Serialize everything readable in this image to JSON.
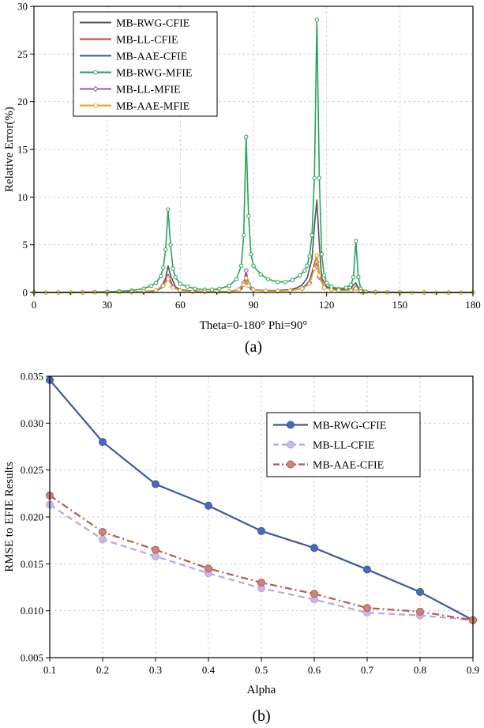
{
  "chart_data": [
    {
      "type": "line",
      "caption": "(a)",
      "xlabel": "Theta=0-180° Phi=90°",
      "ylabel": "Relative Error(%)",
      "xlim": [
        0,
        180
      ],
      "ylim": [
        0,
        30
      ],
      "xticks": [
        0,
        30,
        60,
        90,
        120,
        150,
        180
      ],
      "yticks": [
        0,
        5,
        10,
        15,
        20,
        25,
        30
      ],
      "grid": true,
      "legend_position": "top-left",
      "series": [
        {
          "name": "MB-RWG-CFIE",
          "color": "#555555",
          "marker": "none",
          "x": [
            0,
            10,
            20,
            30,
            40,
            45,
            50,
            52,
            54,
            55,
            56,
            58,
            60,
            65,
            70,
            75,
            80,
            84,
            86,
            87,
            88,
            90,
            95,
            100,
            105,
            108,
            110,
            112,
            114,
            115,
            116,
            117,
            118,
            120,
            125,
            130,
            131,
            132,
            133,
            135,
            140,
            150,
            160,
            170,
            180
          ],
          "y": [
            0,
            0.02,
            0.03,
            0.04,
            0.06,
            0.1,
            0.2,
            0.5,
            1.5,
            2.8,
            1.8,
            0.6,
            0.3,
            0.15,
            0.1,
            0.08,
            0.1,
            0.3,
            0.9,
            1.9,
            0.9,
            0.3,
            0.2,
            0.2,
            0.3,
            0.5,
            0.8,
            1.5,
            3.5,
            7.0,
            9.7,
            5.0,
            1.5,
            0.6,
            0.3,
            0.4,
            0.8,
            1.0,
            0.5,
            0.1,
            0.05,
            0.02,
            0.01,
            0.01,
            0.01
          ]
        },
        {
          "name": "MB-LL-CFIE",
          "color": "#d83a2a",
          "marker": "none",
          "x": [
            0,
            30,
            45,
            50,
            53,
            55,
            57,
            60,
            70,
            80,
            85,
            87,
            89,
            95,
            105,
            110,
            113,
            115,
            116,
            117,
            119,
            125,
            130,
            132,
            134,
            140,
            180
          ],
          "y": [
            0,
            0.03,
            0.06,
            0.15,
            0.6,
            1.9,
            0.6,
            0.2,
            0.08,
            0.08,
            0.3,
            1.4,
            0.3,
            0.15,
            0.2,
            0.4,
            1.2,
            3.0,
            4.0,
            2.0,
            0.5,
            0.2,
            0.2,
            0.5,
            0.1,
            0.02,
            0
          ]
        },
        {
          "name": "MB-AAE-CFIE",
          "color": "#2f5fa8",
          "marker": "none",
          "x": [
            0,
            30,
            45,
            50,
            53,
            55,
            57,
            60,
            70,
            80,
            85,
            87,
            89,
            95,
            105,
            110,
            113,
            115,
            116,
            117,
            119,
            125,
            130,
            132,
            134,
            140,
            180
          ],
          "y": [
            0,
            0.03,
            0.06,
            0.15,
            0.6,
            1.7,
            0.6,
            0.2,
            0.08,
            0.08,
            0.3,
            1.3,
            0.3,
            0.15,
            0.2,
            0.4,
            1.2,
            2.7,
            3.6,
            1.8,
            0.5,
            0.2,
            0.2,
            0.6,
            0.1,
            0.02,
            0
          ]
        },
        {
          "name": "MB-RWG-MFIE",
          "color": "#27a35a",
          "marker": "circle",
          "x": [
            0,
            5,
            10,
            15,
            20,
            25,
            30,
            35,
            40,
            45,
            48,
            50,
            52,
            53,
            54,
            55,
            56,
            57,
            58,
            60,
            63,
            66,
            70,
            73,
            76,
            80,
            83,
            85,
            86,
            87,
            88,
            89,
            90,
            93,
            96,
            100,
            103,
            106,
            109,
            111,
            112,
            113,
            114,
            115,
            116,
            117,
            118,
            119,
            120,
            122,
            125,
            128,
            130,
            131,
            132,
            133,
            134,
            136,
            140,
            145,
            150,
            160,
            170,
            180
          ],
          "y": [
            0,
            0,
            0,
            0,
            0.02,
            0.05,
            0.08,
            0.12,
            0.2,
            0.4,
            0.7,
            1.0,
            1.7,
            2.6,
            4.5,
            8.7,
            5.0,
            2.5,
            1.6,
            0.9,
            0.6,
            0.4,
            0.3,
            0.3,
            0.4,
            0.7,
            1.4,
            2.8,
            6.0,
            16.3,
            8.0,
            4.0,
            2.8,
            1.9,
            1.4,
            1.1,
            1.1,
            1.3,
            1.8,
            2.3,
            2.8,
            3.8,
            6.0,
            12.0,
            28.6,
            12.0,
            4.0,
            1.8,
            1.0,
            0.6,
            0.4,
            0.5,
            0.8,
            1.6,
            5.4,
            1.6,
            0.4,
            0.1,
            0.05,
            0.02,
            0.01,
            0,
            0,
            0
          ]
        },
        {
          "name": "MB-LL-MFIE",
          "color": "#8e59c8",
          "marker": "diamond",
          "x": [
            0,
            10,
            20,
            30,
            40,
            45,
            50,
            53,
            55,
            57,
            60,
            70,
            80,
            84,
            86,
            87,
            88,
            90,
            95,
            100,
            105,
            110,
            113,
            115,
            116,
            117,
            119,
            125,
            130,
            132,
            134,
            140,
            150,
            160,
            170,
            180
          ],
          "y": [
            0,
            0,
            0,
            0.02,
            0.05,
            0.1,
            0.2,
            0.8,
            1.6,
            0.6,
            0.2,
            0.08,
            0.1,
            0.3,
            1.0,
            2.3,
            0.9,
            0.3,
            0.15,
            0.15,
            0.2,
            0.4,
            1.0,
            2.5,
            3.2,
            1.6,
            0.5,
            0.2,
            0.2,
            0.5,
            0.1,
            0.02,
            0,
            0,
            0,
            0
          ]
        },
        {
          "name": "MB-AAE-MFIE",
          "color": "#e0a81e",
          "marker": "circle",
          "x": [
            0,
            5,
            10,
            15,
            20,
            25,
            30,
            35,
            40,
            45,
            50,
            53,
            55,
            57,
            60,
            65,
            70,
            75,
            80,
            84,
            86,
            87,
            88,
            90,
            95,
            100,
            105,
            110,
            113,
            115,
            116,
            117,
            119,
            122,
            125,
            130,
            132,
            134,
            136,
            140,
            145,
            150,
            155,
            160,
            165,
            170,
            175,
            180
          ],
          "y": [
            0,
            0,
            0,
            0,
            0,
            0,
            0.02,
            0.03,
            0.05,
            0.1,
            0.2,
            0.7,
            1.4,
            0.5,
            0.2,
            0.1,
            0.08,
            0.08,
            0.1,
            0.3,
            0.8,
            1.5,
            0.7,
            0.3,
            0.15,
            0.15,
            0.2,
            0.4,
            0.9,
            2.5,
            3.9,
            1.8,
            0.5,
            0.3,
            0.2,
            0.2,
            0.4,
            0.1,
            0.05,
            0.02,
            0,
            0,
            0,
            0,
            0,
            0,
            0,
            0
          ]
        }
      ]
    },
    {
      "type": "line",
      "caption": "(b)",
      "xlabel": "Alpha",
      "ylabel": "RMSE to EFIE Results",
      "xlim": [
        0.1,
        0.9
      ],
      "ylim": [
        0.005,
        0.035
      ],
      "xticks": [
        0.1,
        0.2,
        0.3,
        0.4,
        0.5,
        0.6,
        0.7,
        0.8,
        0.9
      ],
      "xtick_labels": [
        "0.1",
        "0.2",
        "0.3",
        "0.4",
        "0.5",
        "0.6",
        "0.7",
        "0.8",
        "0.9"
      ],
      "yticks": [
        0.005,
        0.01,
        0.015,
        0.02,
        0.025,
        0.03,
        0.035
      ],
      "ytick_labels": [
        "0.005",
        "0.010",
        "0.015",
        "0.020",
        "0.025",
        "0.030",
        "0.035"
      ],
      "grid": true,
      "legend_position": "top-right",
      "x": [
        0.1,
        0.2,
        0.3,
        0.4,
        0.5,
        0.6,
        0.7,
        0.8,
        0.9
      ],
      "series": [
        {
          "name": "MB-RWG-CFIE",
          "color": "#3d5a9e",
          "marker_color": "#4a6ab5",
          "dash": "solid",
          "values": [
            0.0346,
            0.028,
            0.0235,
            0.0212,
            0.0185,
            0.0167,
            0.0144,
            0.012,
            0.009
          ]
        },
        {
          "name": "MB-LL-CFIE",
          "color": "#b7a6e0",
          "marker_color": "#c6b8ea",
          "dash": "dashed",
          "values": [
            0.0213,
            0.0176,
            0.0158,
            0.014,
            0.0124,
            0.0112,
            0.0098,
            0.0095,
            0.009
          ]
        },
        {
          "name": "MB-AAE-CFIE",
          "color": "#b35a4c",
          "marker_color": "#c8877a",
          "dash": "dashdot",
          "values": [
            0.0223,
            0.0184,
            0.0165,
            0.0145,
            0.013,
            0.0118,
            0.0103,
            0.0099,
            0.009
          ]
        }
      ]
    }
  ]
}
